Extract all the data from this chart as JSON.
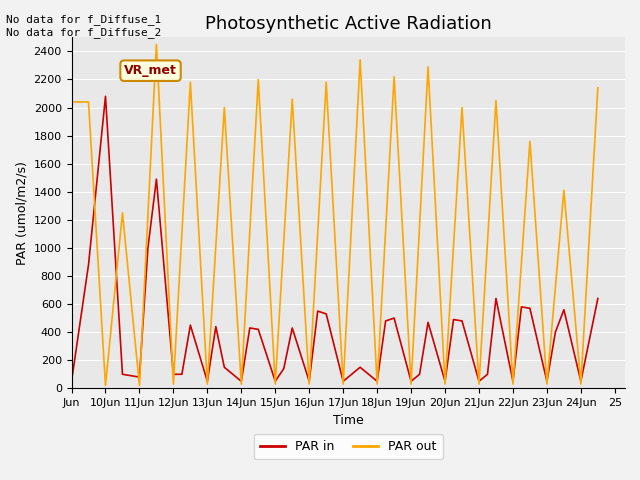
{
  "title": "Photosynthetic Active Radiation",
  "xlabel": "Time",
  "ylabel": "PAR (umol/m2/s)",
  "annotation_text": "No data for f_Diffuse_1\nNo data for f_Diffuse_2",
  "legend_label": "VR_met",
  "ylim": [
    0,
    2500
  ],
  "yticks": [
    0,
    200,
    400,
    600,
    800,
    1000,
    1200,
    1400,
    1600,
    1800,
    2000,
    2200,
    2400
  ],
  "xtick_positions": [
    9,
    10,
    11,
    12,
    13,
    14,
    15,
    16,
    17,
    18,
    19,
    20,
    21,
    22,
    23,
    24,
    25
  ],
  "xtick_labels": [
    "Jun",
    "10Jun",
    "11Jun",
    "12Jun",
    "13Jun",
    "14Jun",
    "15Jun",
    "16Jun",
    "17Jun",
    "18Jun",
    "19Jun",
    "20Jun",
    "21Jun",
    "22Jun",
    "23Jun",
    "24Jun",
    "25"
  ],
  "xlim": [
    9,
    25.3
  ],
  "background_color": "#e8e8e8",
  "fig_background_color": "#f2f2f2",
  "par_in_color": "#cc0000",
  "par_out_color": "#ffa500",
  "par_in_x": [
    9,
    9.5,
    10,
    10.5,
    11,
    11.25,
    11.5,
    12,
    12.25,
    12.5,
    13,
    13.25,
    13.5,
    14,
    14.25,
    14.5,
    15,
    15.25,
    15.5,
    16,
    16.25,
    16.5,
    17,
    17.25,
    17.5,
    18,
    18.25,
    18.5,
    19,
    19.25,
    19.5,
    20,
    20.25,
    20.5,
    21,
    21.25,
    21.5,
    22,
    22.25,
    22.5,
    23,
    23.25,
    23.5,
    24,
    24.5
  ],
  "par_in_y": [
    50,
    880,
    2080,
    100,
    80,
    1000,
    1490,
    100,
    100,
    450,
    50,
    440,
    150,
    50,
    430,
    420,
    50,
    140,
    430,
    50,
    550,
    530,
    50,
    100,
    150,
    50,
    480,
    500,
    50,
    100,
    470,
    50,
    490,
    480,
    50,
    100,
    640,
    50,
    580,
    570,
    50,
    400,
    560,
    50,
    640
  ],
  "par_out_x": [
    9,
    9.5,
    10,
    10.5,
    11,
    11.5,
    12,
    12.5,
    13,
    13.5,
    14,
    14.5,
    15,
    15.5,
    16,
    16.5,
    17,
    17.5,
    18,
    18.5,
    19,
    19.5,
    20,
    20.5,
    21,
    21.5,
    22,
    22.5,
    23,
    23.5,
    24,
    24.5
  ],
  "par_out_y": [
    2040,
    2040,
    20,
    1250,
    20,
    2450,
    30,
    2180,
    30,
    2000,
    30,
    2200,
    30,
    2060,
    30,
    2180,
    30,
    2340,
    30,
    2220,
    30,
    2290,
    30,
    2000,
    30,
    2050,
    30,
    1760,
    30,
    1410,
    30,
    2140
  ],
  "title_fontsize": 13,
  "axis_fontsize": 9,
  "tick_fontsize": 8,
  "annotation_fontsize": 8,
  "vrmet_fontsize": 9
}
